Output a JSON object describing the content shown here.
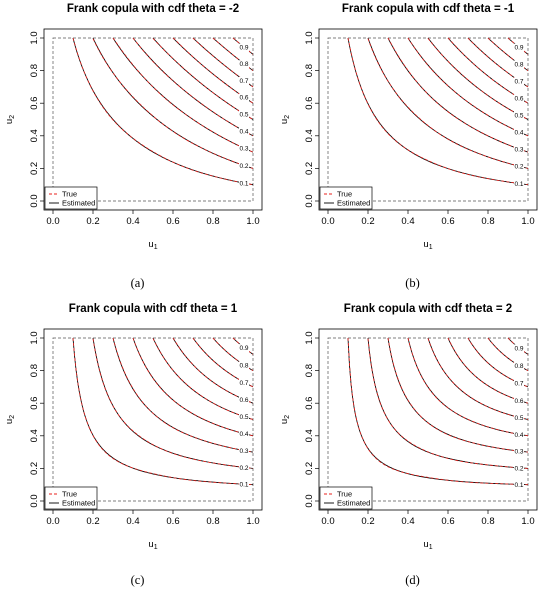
{
  "chart_data": [
    {
      "type": "contour",
      "title": "Frank copula with cdf theta =  -2",
      "theta": -2,
      "xlabel": "u",
      "xlabel_sub": "1",
      "ylabel": "u",
      "ylabel_sub": "2",
      "xlim": [
        0,
        1
      ],
      "ylim": [
        0,
        1
      ],
      "ticks": [
        "0.0",
        "0.2",
        "0.4",
        "0.6",
        "0.8",
        "1.0"
      ],
      "levels": [
        0.1,
        0.2,
        0.3,
        0.4,
        0.5,
        0.6,
        0.7,
        0.8,
        0.9
      ],
      "level_labels": [
        "0.1",
        "0.2",
        "0.3",
        "0.4",
        "0.5",
        "0.6",
        "0.7",
        "0.8",
        "0.9"
      ],
      "series": [
        {
          "name": "True",
          "color": "#e8201c",
          "dash": "dashed"
        },
        {
          "name": "Estimated",
          "color": "#000000",
          "dash": "solid"
        }
      ],
      "caption": "(a)"
    },
    {
      "type": "contour",
      "title": "Frank copula with cdf theta =  -1",
      "theta": -1,
      "xlabel": "u",
      "xlabel_sub": "1",
      "ylabel": "u",
      "ylabel_sub": "2",
      "xlim": [
        0,
        1
      ],
      "ylim": [
        0,
        1
      ],
      "ticks": [
        "0.0",
        "0.2",
        "0.4",
        "0.6",
        "0.8",
        "1.0"
      ],
      "levels": [
        0.1,
        0.2,
        0.3,
        0.4,
        0.5,
        0.6,
        0.7,
        0.8,
        0.9
      ],
      "level_labels": [
        "0.1",
        "0.2",
        "0.3",
        "0.4",
        "0.5",
        "0.6",
        "0.7",
        "0.8",
        "0.9"
      ],
      "series": [
        {
          "name": "True",
          "color": "#e8201c",
          "dash": "dashed"
        },
        {
          "name": "Estimated",
          "color": "#000000",
          "dash": "solid"
        }
      ],
      "caption": "(b)"
    },
    {
      "type": "contour",
      "title": "Frank copula with cdf theta =  1",
      "theta": 1,
      "xlabel": "u",
      "xlabel_sub": "1",
      "ylabel": "u",
      "ylabel_sub": "2",
      "xlim": [
        0,
        1
      ],
      "ylim": [
        0,
        1
      ],
      "ticks": [
        "0.0",
        "0.2",
        "0.4",
        "0.6",
        "0.8",
        "1.0"
      ],
      "levels": [
        0.1,
        0.2,
        0.3,
        0.4,
        0.5,
        0.6,
        0.7,
        0.8,
        0.9
      ],
      "level_labels": [
        "0.1",
        "0.2",
        "0.3",
        "0.4",
        "0.5",
        "0.6",
        "0.7",
        "0.8",
        "0.9"
      ],
      "series": [
        {
          "name": "True",
          "color": "#e8201c",
          "dash": "dashed"
        },
        {
          "name": "Estimated",
          "color": "#000000",
          "dash": "solid"
        }
      ],
      "caption": "(c)"
    },
    {
      "type": "contour",
      "title": "Frank copula with cdf theta =  2",
      "theta": 2,
      "xlabel": "u",
      "xlabel_sub": "1",
      "ylabel": "u",
      "ylabel_sub": "2",
      "xlim": [
        0,
        1
      ],
      "ylim": [
        0,
        1
      ],
      "ticks": [
        "0.0",
        "0.2",
        "0.4",
        "0.6",
        "0.8",
        "1.0"
      ],
      "levels": [
        0.1,
        0.2,
        0.3,
        0.4,
        0.5,
        0.6,
        0.7,
        0.8,
        0.9
      ],
      "level_labels": [
        "0.1",
        "0.2",
        "0.3",
        "0.4",
        "0.5",
        "0.6",
        "0.7",
        "0.8",
        "0.9"
      ],
      "series": [
        {
          "name": "True",
          "color": "#e8201c",
          "dash": "dashed"
        },
        {
          "name": "Estimated",
          "color": "#000000",
          "dash": "solid"
        }
      ],
      "caption": "(d)"
    }
  ]
}
